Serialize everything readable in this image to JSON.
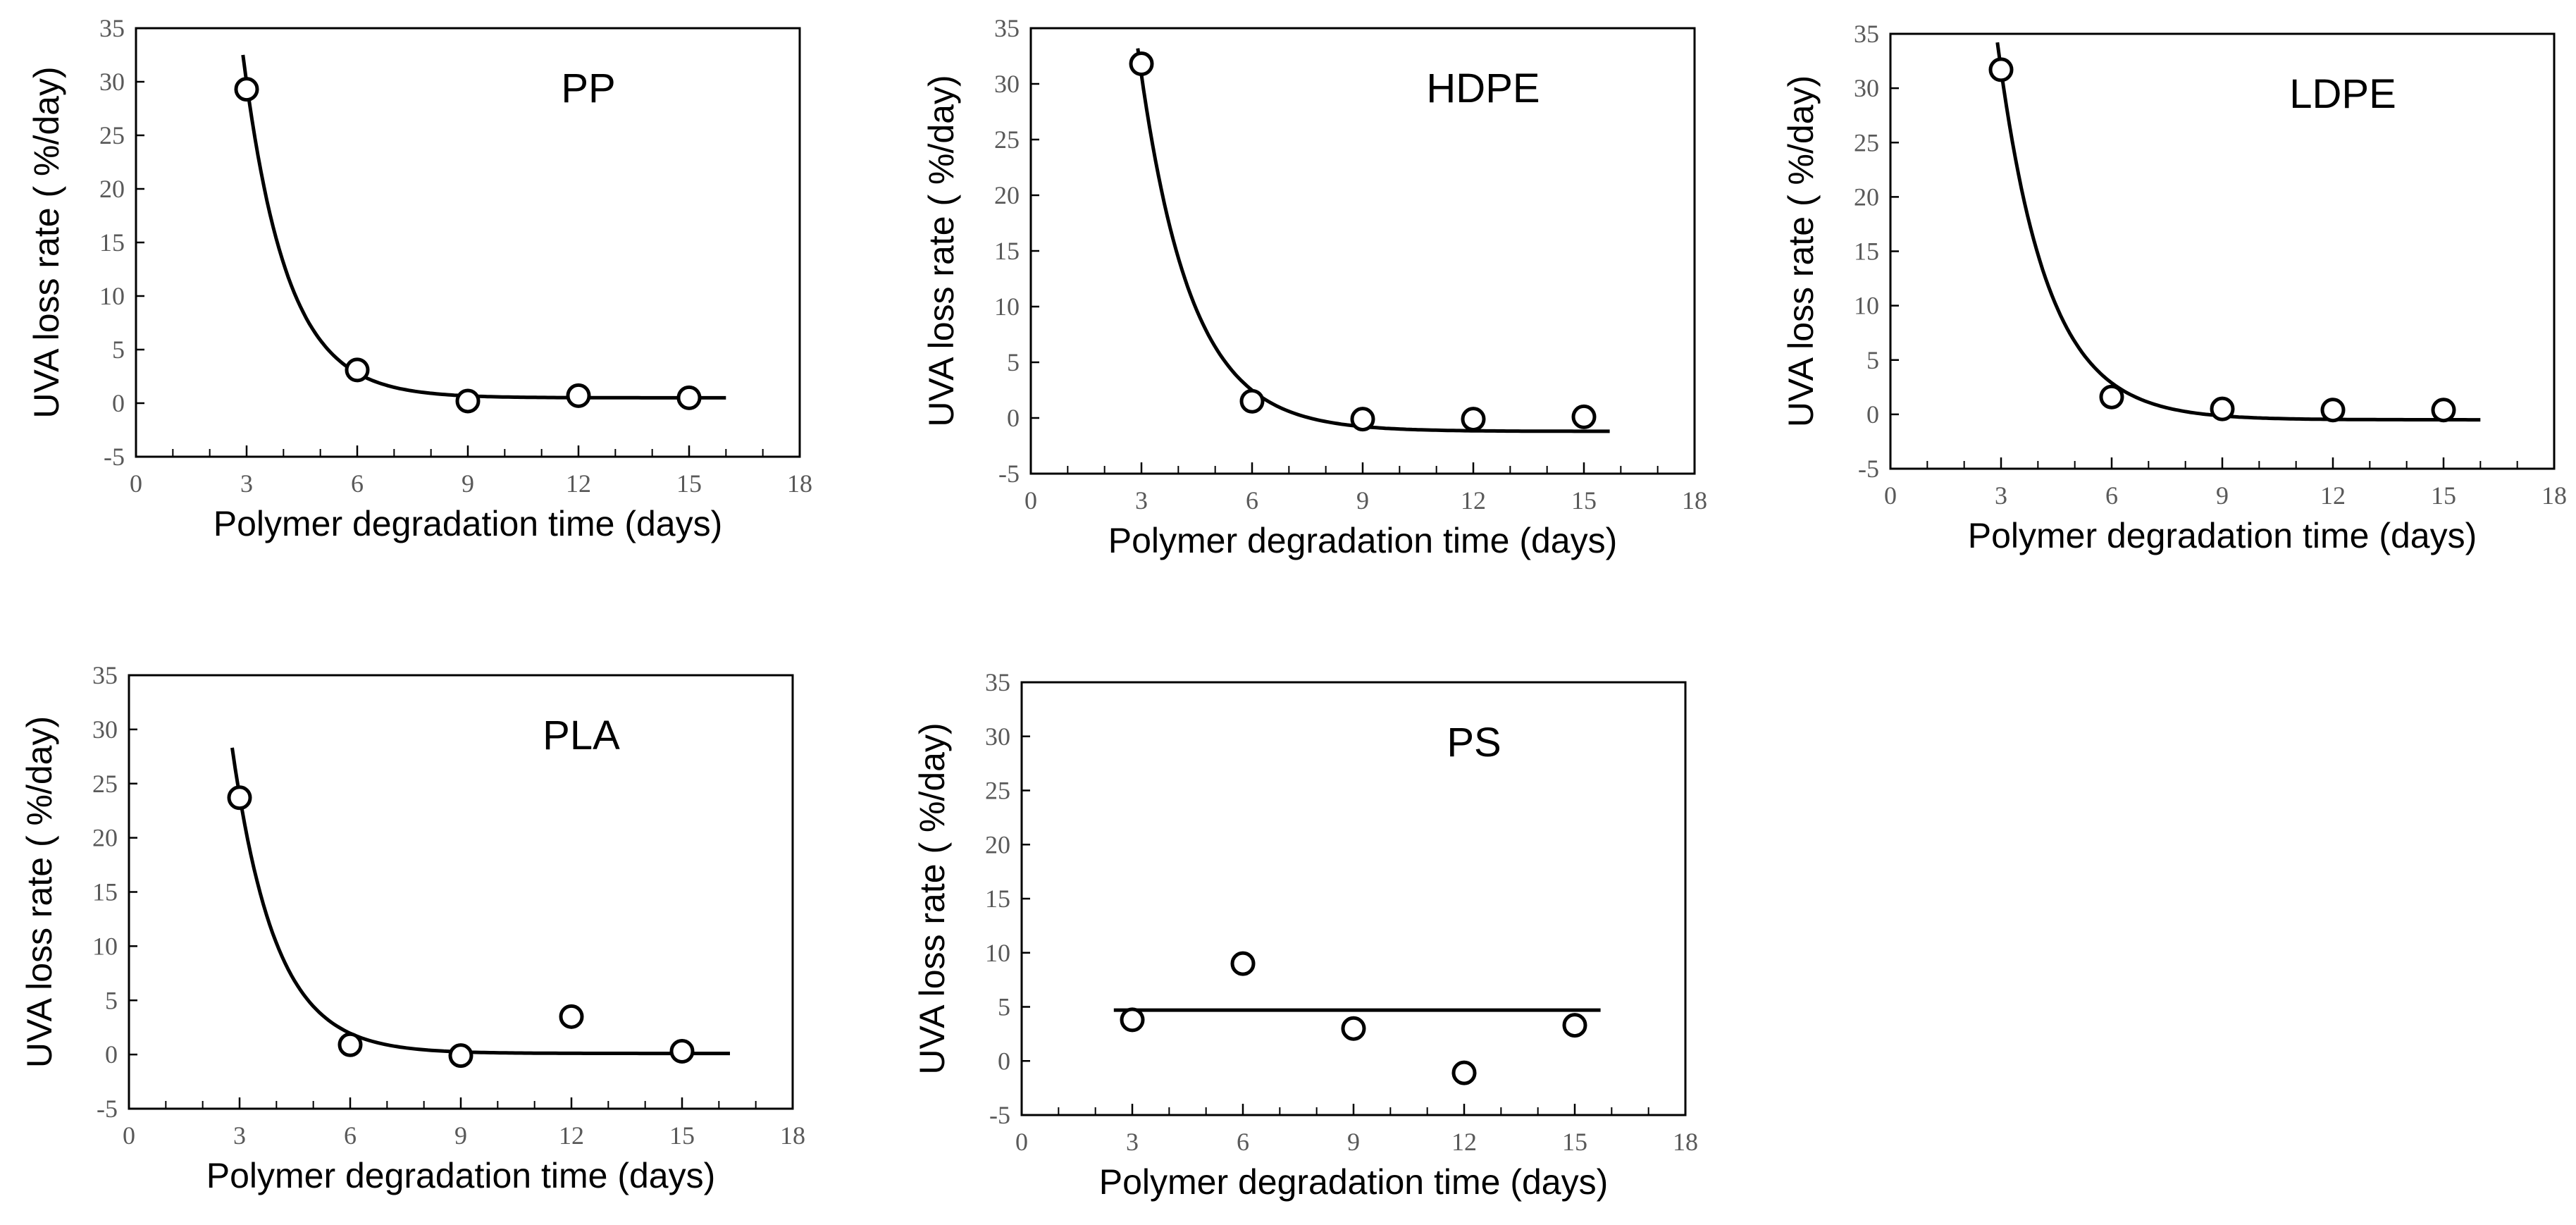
{
  "chart_data": [
    {
      "type": "scatter",
      "title": "PP",
      "xlabel": "Polymer degradation time (days)",
      "ylabel": "UVA loss rate ( %/day)",
      "xlim": [
        0,
        18
      ],
      "ylim": [
        -5,
        35
      ],
      "xticks": [
        "0",
        "3",
        "6",
        "9",
        "12",
        "15",
        "18"
      ],
      "yticks": [
        "-5",
        "0",
        "5",
        "10",
        "15",
        "20",
        "25",
        "30",
        "35"
      ],
      "points": [
        {
          "x": 3,
          "y": 29.3
        },
        {
          "x": 6,
          "y": 3.1
        },
        {
          "x": 9,
          "y": 0.2
        },
        {
          "x": 12,
          "y": 0.7
        },
        {
          "x": 15,
          "y": 0.5
        }
      ],
      "fit": {
        "model": "exponential decay",
        "a": 29.4,
        "k": 0.85,
        "c": 0.5,
        "x_range": [
          2.9,
          16
        ]
      }
    },
    {
      "type": "scatter",
      "title": "HDPE",
      "xlabel": "Polymer degradation time (days)",
      "ylabel": "UVA loss rate ( %/day)",
      "xlim": [
        0,
        18
      ],
      "ylim": [
        -5,
        35
      ],
      "xticks": [
        "0",
        "3",
        "6",
        "9",
        "12",
        "15",
        "18"
      ],
      "yticks": [
        "-5",
        "0",
        "5",
        "10",
        "15",
        "20",
        "25",
        "30",
        "35"
      ],
      "points": [
        {
          "x": 3,
          "y": 31.8
        },
        {
          "x": 6,
          "y": 1.5
        },
        {
          "x": 9,
          "y": -0.1
        },
        {
          "x": 12,
          "y": -0.1
        },
        {
          "x": 15,
          "y": 0.1
        }
      ],
      "fit": {
        "model": "exponential decay",
        "a": 32,
        "k": 0.72,
        "c": -1.2,
        "x_range": [
          2.9,
          15.7
        ]
      }
    },
    {
      "type": "scatter",
      "title": "LDPE",
      "xlabel": "Polymer degradation time (days)",
      "ylabel": "UVA loss rate ( %/day)",
      "xlim": [
        0,
        18
      ],
      "ylim": [
        -5,
        35
      ],
      "xticks": [
        "0",
        "3",
        "6",
        "9",
        "12",
        "15",
        "18"
      ],
      "yticks": [
        "-5",
        "0",
        "5",
        "10",
        "15",
        "20",
        "25",
        "30",
        "35"
      ],
      "points": [
        {
          "x": 3,
          "y": 31.7
        },
        {
          "x": 6,
          "y": 1.6
        },
        {
          "x": 9,
          "y": 0.5
        },
        {
          "x": 12,
          "y": 0.4
        },
        {
          "x": 15,
          "y": 0.4
        }
      ],
      "fit": {
        "model": "exponential decay",
        "a": 32.2,
        "k": 0.75,
        "c": -0.5,
        "x_range": [
          2.9,
          16
        ]
      }
    },
    {
      "type": "scatter",
      "title": "PLA",
      "xlabel": "Polymer degradation time (days)",
      "ylabel": "UVA loss rate ( %/day)",
      "xlim": [
        0,
        18
      ],
      "ylim": [
        -5,
        35
      ],
      "xticks": [
        "0",
        "3",
        "6",
        "9",
        "12",
        "15",
        "18"
      ],
      "yticks": [
        "-5",
        "0",
        "5",
        "10",
        "15",
        "20",
        "25",
        "30",
        "35"
      ],
      "points": [
        {
          "x": 3,
          "y": 23.7
        },
        {
          "x": 6,
          "y": 0.9
        },
        {
          "x": 9,
          "y": -0.1
        },
        {
          "x": 12,
          "y": 3.5
        },
        {
          "x": 15,
          "y": 0.3
        }
      ],
      "fit": {
        "model": "exponential decay",
        "a": 23.8,
        "k": 0.85,
        "c": 0.1,
        "x_range": [
          2.8,
          16.3
        ]
      }
    },
    {
      "type": "scatter",
      "title": "PS",
      "xlabel": "Polymer degradation time (days)",
      "ylabel": "UVA loss rate ( %/day)",
      "xlim": [
        0,
        18
      ],
      "ylim": [
        -5,
        35
      ],
      "xticks": [
        "0",
        "3",
        "6",
        "9",
        "12",
        "15",
        "18"
      ],
      "yticks": [
        "-5",
        "0",
        "5",
        "10",
        "15",
        "20",
        "25",
        "30",
        "35"
      ],
      "points": [
        {
          "x": 3,
          "y": 3.8
        },
        {
          "x": 6,
          "y": 9.0
        },
        {
          "x": 9,
          "y": 3.0
        },
        {
          "x": 12,
          "y": -1.1
        },
        {
          "x": 15,
          "y": 3.3
        }
      ],
      "fit": {
        "model": "constant",
        "c": 4.7,
        "x_range": [
          2.5,
          15.7
        ]
      }
    }
  ]
}
